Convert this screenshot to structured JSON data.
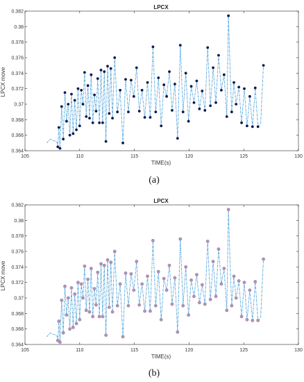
{
  "chart_data": [
    {
      "panel": "(a)",
      "type": "line",
      "title": "LPCX",
      "xlabel": "TIME(s)",
      "ylabel": "LPCX move",
      "xlim": [
        105,
        130
      ],
      "ylim": [
        0.364,
        0.382
      ],
      "xticks": [
        "105",
        "110",
        "115",
        "120",
        "125",
        "130"
      ],
      "yticks": [
        "0.364",
        "0.366",
        "0.368",
        "0.37",
        "0.372",
        "0.374",
        "0.376",
        "0.378",
        "0.38",
        "0.382"
      ],
      "grid": false,
      "line_color": "#4aa0d8",
      "marker_style": "dark-dot",
      "marker_color": "#0a1a50",
      "series": [
        {
          "x": [
            107.0,
            107.3,
            107.6,
            107.9,
            108.0,
            108.1,
            108.2,
            108.35,
            108.5,
            108.65,
            108.8,
            108.95,
            109.1,
            109.25,
            109.4,
            109.55,
            109.7,
            109.85,
            110.0,
            110.15,
            110.3,
            110.45,
            110.6,
            110.75,
            110.9,
            111.05,
            111.2,
            111.35,
            111.5,
            111.65,
            111.8,
            111.95,
            112.1,
            112.25,
            112.4,
            112.55,
            112.7,
            112.85,
            113.0,
            113.2,
            113.45,
            113.7,
            113.95,
            114.2,
            114.45,
            114.7,
            114.95,
            115.2,
            115.45,
            115.7,
            115.95,
            116.2,
            116.45,
            116.7,
            116.95,
            117.2,
            117.45,
            117.7,
            117.95,
            118.2,
            118.45,
            118.7,
            118.95,
            119.2,
            119.45,
            119.7,
            119.95,
            120.2,
            120.45,
            120.7,
            120.95,
            121.2,
            121.45,
            121.7,
            121.95,
            122.2,
            122.45,
            122.7,
            122.95,
            123.2,
            123.45,
            123.6,
            123.75,
            123.9,
            124.1,
            124.3,
            124.55,
            124.8,
            125.05,
            125.3,
            125.55,
            125.8,
            126.05,
            126.3,
            126.55,
            126.8
          ],
          "y": [
            0.365,
            0.3655,
            0.3653,
            0.3652,
            0.3645,
            0.367,
            0.3643,
            0.3697,
            0.3655,
            0.3715,
            0.3678,
            0.37,
            0.366,
            0.3713,
            0.3662,
            0.3705,
            0.3667,
            0.372,
            0.3672,
            0.3718,
            0.37,
            0.3741,
            0.3684,
            0.3724,
            0.3682,
            0.3738,
            0.3676,
            0.3712,
            0.3691,
            0.3733,
            0.3676,
            0.3744,
            0.3676,
            0.3742,
            0.3652,
            0.3749,
            0.3688,
            0.3746,
            0.3682,
            0.376,
            0.369,
            0.3718,
            0.365,
            0.3732,
            0.369,
            0.3731,
            0.371,
            0.3747,
            0.3691,
            0.3718,
            0.3683,
            0.3728,
            0.3683,
            0.3774,
            0.369,
            0.3734,
            0.3672,
            0.3725,
            0.371,
            0.3742,
            0.3692,
            0.3726,
            0.3656,
            0.3776,
            0.369,
            0.374,
            0.3678,
            0.3723,
            0.3702,
            0.373,
            0.3694,
            0.3717,
            0.3692,
            0.3773,
            0.3698,
            0.3747,
            0.3702,
            0.3763,
            0.3718,
            0.3738,
            0.3684,
            0.3814,
            0.3745,
            0.369,
            0.3728,
            0.37,
            0.3722,
            0.3676,
            0.372,
            0.3672,
            0.371,
            0.3671,
            0.3721,
            0.3671,
            0.3676,
            0.375
          ]
        }
      ]
    },
    {
      "panel": "(b)",
      "type": "line",
      "title": "LPCX",
      "xlabel": "TIME(s)",
      "ylabel": "LPCX move",
      "xlim": [
        105,
        130
      ],
      "ylim": [
        0.364,
        0.382
      ],
      "xticks": [
        "105",
        "110",
        "115",
        "120",
        "125",
        "130"
      ],
      "yticks": [
        "0.364",
        "0.366",
        "0.368",
        "0.37",
        "0.372",
        "0.374",
        "0.376",
        "0.378",
        "0.38",
        "0.382"
      ],
      "grid": false,
      "line_color": "#4aa0d8",
      "marker_style": "pink-circle",
      "marker_color": "#c88aa0",
      "series": [
        {
          "x": [
            107.0,
            107.3,
            107.6,
            107.9,
            108.0,
            108.1,
            108.2,
            108.35,
            108.5,
            108.65,
            108.8,
            108.95,
            109.1,
            109.25,
            109.4,
            109.55,
            109.7,
            109.85,
            110.0,
            110.15,
            110.3,
            110.45,
            110.6,
            110.75,
            110.9,
            111.05,
            111.2,
            111.35,
            111.5,
            111.65,
            111.8,
            111.95,
            112.1,
            112.25,
            112.4,
            112.55,
            112.7,
            112.85,
            113.0,
            113.2,
            113.45,
            113.7,
            113.95,
            114.2,
            114.45,
            114.7,
            114.95,
            115.2,
            115.45,
            115.7,
            115.95,
            116.2,
            116.45,
            116.7,
            116.95,
            117.2,
            117.45,
            117.7,
            117.95,
            118.2,
            118.45,
            118.7,
            118.95,
            119.2,
            119.45,
            119.7,
            119.95,
            120.2,
            120.45,
            120.7,
            120.95,
            121.2,
            121.45,
            121.7,
            121.95,
            122.2,
            122.45,
            122.7,
            122.95,
            123.2,
            123.45,
            123.6,
            123.75,
            123.9,
            124.1,
            124.3,
            124.55,
            124.8,
            125.05,
            125.3,
            125.55,
            125.8,
            126.05,
            126.3,
            126.55,
            126.8
          ],
          "y": [
            0.365,
            0.3655,
            0.3653,
            0.3652,
            0.3645,
            0.367,
            0.3643,
            0.3697,
            0.3655,
            0.3715,
            0.3678,
            0.37,
            0.366,
            0.3713,
            0.3662,
            0.3705,
            0.3667,
            0.372,
            0.3672,
            0.3718,
            0.37,
            0.3741,
            0.3684,
            0.3724,
            0.3682,
            0.3738,
            0.3676,
            0.3712,
            0.3691,
            0.3733,
            0.3676,
            0.3744,
            0.3676,
            0.3742,
            0.3652,
            0.3749,
            0.3688,
            0.3746,
            0.3682,
            0.376,
            0.369,
            0.3718,
            0.365,
            0.3732,
            0.369,
            0.3731,
            0.371,
            0.3747,
            0.3691,
            0.3718,
            0.3683,
            0.3728,
            0.3683,
            0.3774,
            0.369,
            0.3734,
            0.3672,
            0.3725,
            0.371,
            0.3742,
            0.3692,
            0.3726,
            0.3656,
            0.3776,
            0.369,
            0.374,
            0.3678,
            0.3723,
            0.3702,
            0.373,
            0.3694,
            0.3717,
            0.3692,
            0.3773,
            0.3698,
            0.3747,
            0.3702,
            0.3763,
            0.3718,
            0.3738,
            0.3684,
            0.3814,
            0.3745,
            0.369,
            0.3728,
            0.37,
            0.3722,
            0.3676,
            0.372,
            0.3672,
            0.371,
            0.3671,
            0.3721,
            0.3671,
            0.3676,
            0.375
          ]
        }
      ]
    }
  ]
}
